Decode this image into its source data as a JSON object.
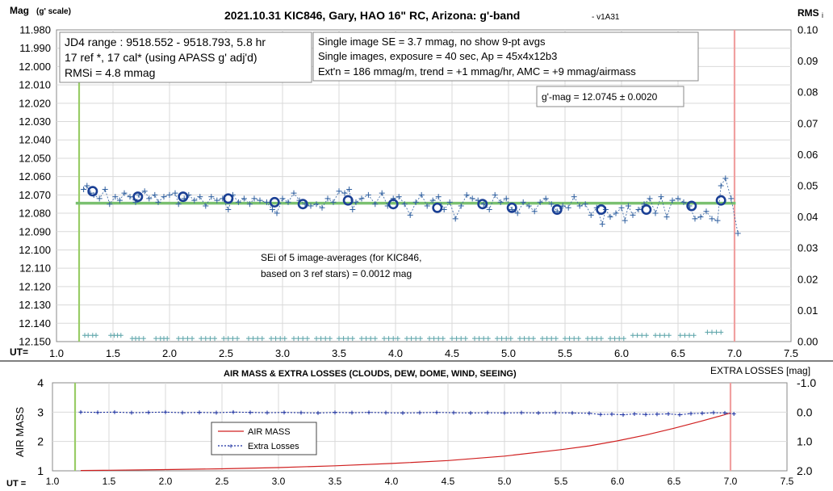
{
  "chart_data": [
    {
      "type": "scatter",
      "title": "2021.10.31 KIC846, Gary, HAO 16\" RC, Arizona: g'-band",
      "title_suffix": "- v1A31",
      "ylabel_main": "Mag",
      "ylabel_sub": "(g' scale)",
      "y2label_main": "RMS",
      "y2label_sub": "i",
      "xlabel": "UT=",
      "xlim": [
        1.0,
        7.5
      ],
      "ylim": [
        11.98,
        12.15
      ],
      "y_inverted": true,
      "y2lim": [
        0.0,
        0.1
      ],
      "x_ticks": [
        "1.0",
        "1.5",
        "2.0",
        "2.5",
        "3.0",
        "3.5",
        "4.0",
        "4.5",
        "5.0",
        "5.5",
        "6.0",
        "6.5",
        "7.0",
        "7.5"
      ],
      "y_ticks": [
        "11.980",
        "11.990",
        "12.000",
        "12.010",
        "12.020",
        "12.030",
        "12.040",
        "12.050",
        "12.060",
        "12.070",
        "12.080",
        "12.090",
        "12.100",
        "12.110",
        "12.120",
        "12.130",
        "12.140",
        "12.150"
      ],
      "y2_ticks": [
        "0.10",
        "0.09",
        "0.08",
        "0.07",
        "0.06",
        "0.05",
        "0.04",
        "0.03",
        "0.02",
        "0.01",
        "0.00"
      ],
      "start_line_x": 1.2,
      "end_line_x": 7.0,
      "mean_mag": 12.0745,
      "colors": {
        "single": "#2f5f9f",
        "avg": "#1a3f94",
        "mean_line": "#7ac070",
        "start_line": "#99cc66",
        "end_line": "#f0a0a0",
        "rms": "#5aa3a8"
      },
      "grid": true,
      "info_boxes": [
        {
          "lines": [
            "JD4 range : 9518.552 - 9518.793,  5.8  hr",
            "17 ref *, 17 cal* (using APASS g' adj'd)",
            "RMSi = 4.8 mmag"
          ]
        },
        {
          "lines": [
            "Single image SE = 3.7 mmag, no show  9-pt avgs",
            "Single images, exposure = 40 sec, Ap = 45x4x12b3",
            "Ext'n = 186 mmag/m, trend = +1 mmag/hr, AMC = +9 mmag/airmass"
          ]
        },
        {
          "lines": [
            "g'-mag = 12.0745 ± 0.0020"
          ]
        }
      ],
      "annotation_lines": [
        "SEi of 5 image-averages (for KIC846,",
        "based on 3 ref stars) = 0.0012 mag"
      ],
      "series": [
        {
          "kind": "single_images",
          "x": [
            1.24,
            1.27,
            1.3,
            1.33,
            1.38,
            1.43,
            1.47,
            1.52,
            1.56,
            1.6,
            1.65,
            1.7,
            1.73,
            1.78,
            1.82,
            1.87,
            1.9,
            1.95,
            2.0,
            2.05,
            2.08,
            2.13,
            2.17,
            2.22,
            2.27,
            2.32,
            2.37,
            2.42,
            2.47,
            2.52,
            2.56,
            2.61,
            2.66,
            2.71,
            2.75,
            2.8,
            2.86,
            2.91,
            2.95,
            3.0,
            3.05,
            3.1,
            3.15,
            3.2,
            3.25,
            3.3,
            3.35,
            3.4,
            3.45,
            3.5,
            3.55,
            3.59,
            3.62,
            3.65,
            3.7,
            3.76,
            3.82,
            3.88,
            3.93,
            3.98,
            4.03,
            4.08,
            4.13,
            4.18,
            4.23,
            4.28,
            4.33,
            4.38,
            4.43,
            4.48,
            4.53,
            4.58,
            4.63,
            4.68,
            4.73,
            4.78,
            4.83,
            4.88,
            4.93,
            4.98,
            5.03,
            5.08,
            5.13,
            5.18,
            5.23,
            5.28,
            5.33,
            5.38,
            5.43,
            5.48,
            5.53,
            5.58,
            5.63,
            5.68,
            5.73,
            5.78,
            5.83,
            5.86,
            5.9,
            5.95,
            6.0,
            6.03,
            6.06,
            6.1,
            6.15,
            6.2,
            6.25,
            6.3,
            6.35,
            6.4,
            6.45,
            6.5,
            6.55,
            6.6,
            6.65,
            6.7,
            6.75,
            6.8,
            6.85,
            6.88,
            6.92,
            6.97,
            7.03
          ],
          "y": [
            12.067,
            12.065,
            12.069,
            12.07,
            12.072,
            12.067,
            12.075,
            12.071,
            12.073,
            12.069,
            12.071,
            12.074,
            12.07,
            12.068,
            12.072,
            12.07,
            12.074,
            12.071,
            12.07,
            12.069,
            12.075,
            12.072,
            12.07,
            12.073,
            12.071,
            12.076,
            12.071,
            12.073,
            12.072,
            12.078,
            12.07,
            12.074,
            12.072,
            12.075,
            12.072,
            12.073,
            12.074,
            12.078,
            12.08,
            12.072,
            12.074,
            12.069,
            12.073,
            12.075,
            12.076,
            12.075,
            12.077,
            12.072,
            12.074,
            12.068,
            12.069,
            12.067,
            12.078,
            12.074,
            12.072,
            12.07,
            12.075,
            12.069,
            12.076,
            12.072,
            12.071,
            12.075,
            12.081,
            12.074,
            12.07,
            12.076,
            12.073,
            12.071,
            12.078,
            12.074,
            12.083,
            12.076,
            12.07,
            12.072,
            12.073,
            12.075,
            12.078,
            12.07,
            12.074,
            12.072,
            12.078,
            12.08,
            12.074,
            12.076,
            12.079,
            12.074,
            12.072,
            12.075,
            12.079,
            12.076,
            12.077,
            12.071,
            12.076,
            12.075,
            12.081,
            12.077,
            12.086,
            12.078,
            12.082,
            12.08,
            12.077,
            12.084,
            12.076,
            12.081,
            12.078,
            12.075,
            12.072,
            12.08,
            12.071,
            12.082,
            12.073,
            12.072,
            12.074,
            12.076,
            12.083,
            12.082,
            12.079,
            12.083,
            12.084,
            12.065,
            12.061,
            12.072,
            12.091
          ]
        },
        {
          "kind": "averages",
          "x": [
            1.32,
            1.72,
            2.12,
            2.52,
            2.93,
            3.18,
            3.58,
            3.98,
            4.37,
            4.77,
            5.03,
            5.43,
            5.82,
            6.22,
            6.62,
            6.88
          ],
          "y": [
            12.068,
            12.071,
            12.071,
            12.072,
            12.074,
            12.075,
            12.073,
            12.075,
            12.077,
            12.075,
            12.077,
            12.078,
            12.078,
            12.078,
            12.076,
            12.073
          ]
        },
        {
          "kind": "rms",
          "x": [
            1.25,
            1.28,
            1.32,
            1.35,
            1.48,
            1.51,
            1.54,
            1.57,
            1.67,
            1.7,
            1.73,
            1.77,
            1.88,
            1.92,
            1.95,
            1.98,
            2.08,
            2.12,
            2.16,
            2.2,
            2.28,
            2.32,
            2.36,
            2.4,
            2.48,
            2.52,
            2.56,
            2.6,
            2.7,
            2.74,
            2.78,
            2.82,
            2.9,
            2.94,
            2.98,
            3.02,
            3.1,
            3.14,
            3.18,
            3.22,
            3.3,
            3.34,
            3.38,
            3.42,
            3.5,
            3.54,
            3.58,
            3.62,
            3.7,
            3.74,
            3.78,
            3.82,
            3.9,
            3.94,
            3.98,
            4.02,
            4.1,
            4.14,
            4.18,
            4.22,
            4.3,
            4.34,
            4.38,
            4.42,
            4.5,
            4.54,
            4.58,
            4.62,
            4.7,
            4.74,
            4.78,
            4.82,
            4.9,
            4.94,
            4.98,
            5.02,
            5.1,
            5.14,
            5.18,
            5.22,
            5.3,
            5.34,
            5.38,
            5.42,
            5.5,
            5.54,
            5.58,
            5.62,
            5.7,
            5.74,
            5.78,
            5.82,
            5.9,
            5.94,
            5.98,
            6.02,
            6.1,
            6.14,
            6.18,
            6.22,
            6.3,
            6.34,
            6.38,
            6.42,
            6.52,
            6.56,
            6.6,
            6.64,
            6.76,
            6.8,
            6.84,
            6.88
          ],
          "y": [
            0.002,
            0.002,
            0.002,
            0.002,
            0.002,
            0.002,
            0.002,
            0.002,
            0.001,
            0.001,
            0.001,
            0.001,
            0.001,
            0.001,
            0.001,
            0.001,
            0.001,
            0.001,
            0.001,
            0.001,
            0.001,
            0.001,
            0.001,
            0.001,
            0.001,
            0.001,
            0.001,
            0.001,
            0.001,
            0.001,
            0.001,
            0.001,
            0.001,
            0.001,
            0.001,
            0.001,
            0.001,
            0.001,
            0.001,
            0.001,
            0.001,
            0.001,
            0.001,
            0.001,
            0.001,
            0.001,
            0.001,
            0.001,
            0.001,
            0.001,
            0.001,
            0.001,
            0.001,
            0.001,
            0.001,
            0.001,
            0.001,
            0.001,
            0.001,
            0.001,
            0.001,
            0.001,
            0.001,
            0.001,
            0.001,
            0.001,
            0.001,
            0.001,
            0.001,
            0.001,
            0.001,
            0.001,
            0.001,
            0.001,
            0.001,
            0.001,
            0.001,
            0.001,
            0.001,
            0.001,
            0.001,
            0.001,
            0.001,
            0.001,
            0.001,
            0.001,
            0.001,
            0.001,
            0.001,
            0.001,
            0.001,
            0.001,
            0.001,
            0.001,
            0.001,
            0.001,
            0.002,
            0.002,
            0.002,
            0.002,
            0.002,
            0.002,
            0.002,
            0.002,
            0.002,
            0.002,
            0.002,
            0.002,
            0.003,
            0.003,
            0.003,
            0.003
          ]
        }
      ]
    },
    {
      "type": "line",
      "title": "AIR MASS & EXTRA LOSSES (CLOUDS, DEW, DOME, WIND, SEEING)",
      "ylabel": "AIR MASS",
      "y2label": "EXTRA LOSSES [mag]",
      "xlabel": "UT =",
      "xlim": [
        1.0,
        7.5
      ],
      "ylim": [
        1,
        4
      ],
      "y2lim": [
        -1.0,
        2.0
      ],
      "x_ticks": [
        "1.0",
        "1.5",
        "2.0",
        "2.5",
        "3.0",
        "3.5",
        "4.0",
        "4.5",
        "5.0",
        "5.5",
        "6.0",
        "6.5",
        "7.0",
        "7.5"
      ],
      "y_ticks": [
        "4",
        "3",
        "2",
        "1"
      ],
      "y2_ticks": [
        "-1.0",
        "0.0",
        "1.0",
        "2.0"
      ],
      "start_line_x": 1.2,
      "end_line_x": 7.0,
      "legend": [
        "AIR MASS",
        "Extra Losses"
      ],
      "legend_placement": "center-left",
      "colors": {
        "airmass": "#d02020",
        "losses": "#1a2fa0"
      },
      "series": [
        {
          "name": "AIR MASS",
          "x": [
            1.25,
            1.5,
            2.0,
            2.5,
            3.0,
            3.5,
            4.0,
            4.5,
            5.0,
            5.5,
            5.75,
            6.0,
            6.25,
            6.5,
            6.75,
            6.9,
            7.0
          ],
          "y": [
            1.01,
            1.02,
            1.04,
            1.07,
            1.11,
            1.17,
            1.25,
            1.35,
            1.5,
            1.72,
            1.85,
            2.02,
            2.22,
            2.45,
            2.7,
            2.86,
            2.97
          ]
        },
        {
          "name": "Extra Losses",
          "x": [
            1.25,
            1.4,
            1.55,
            1.7,
            1.85,
            2.0,
            2.15,
            2.3,
            2.45,
            2.6,
            2.75,
            2.9,
            3.05,
            3.2,
            3.35,
            3.5,
            3.65,
            3.8,
            3.95,
            4.1,
            4.25,
            4.4,
            4.55,
            4.7,
            4.85,
            5.0,
            5.15,
            5.3,
            5.45,
            5.6,
            5.75,
            5.85,
            5.95,
            6.05,
            6.15,
            6.25,
            6.35,
            6.45,
            6.55,
            6.65,
            6.75,
            6.85,
            6.95,
            7.03
          ],
          "y": [
            0.0,
            0.01,
            0.0,
            0.02,
            0.01,
            0.0,
            0.02,
            0.01,
            0.02,
            0.0,
            0.01,
            0.02,
            0.01,
            0.02,
            0.03,
            0.01,
            0.02,
            0.01,
            0.02,
            0.03,
            0.02,
            0.01,
            0.02,
            0.03,
            0.02,
            0.03,
            0.02,
            0.03,
            0.02,
            0.03,
            0.04,
            0.08,
            0.07,
            0.09,
            0.06,
            0.08,
            0.07,
            0.06,
            0.09,
            0.05,
            0.04,
            0.02,
            0.03,
            0.06
          ]
        }
      ]
    }
  ]
}
